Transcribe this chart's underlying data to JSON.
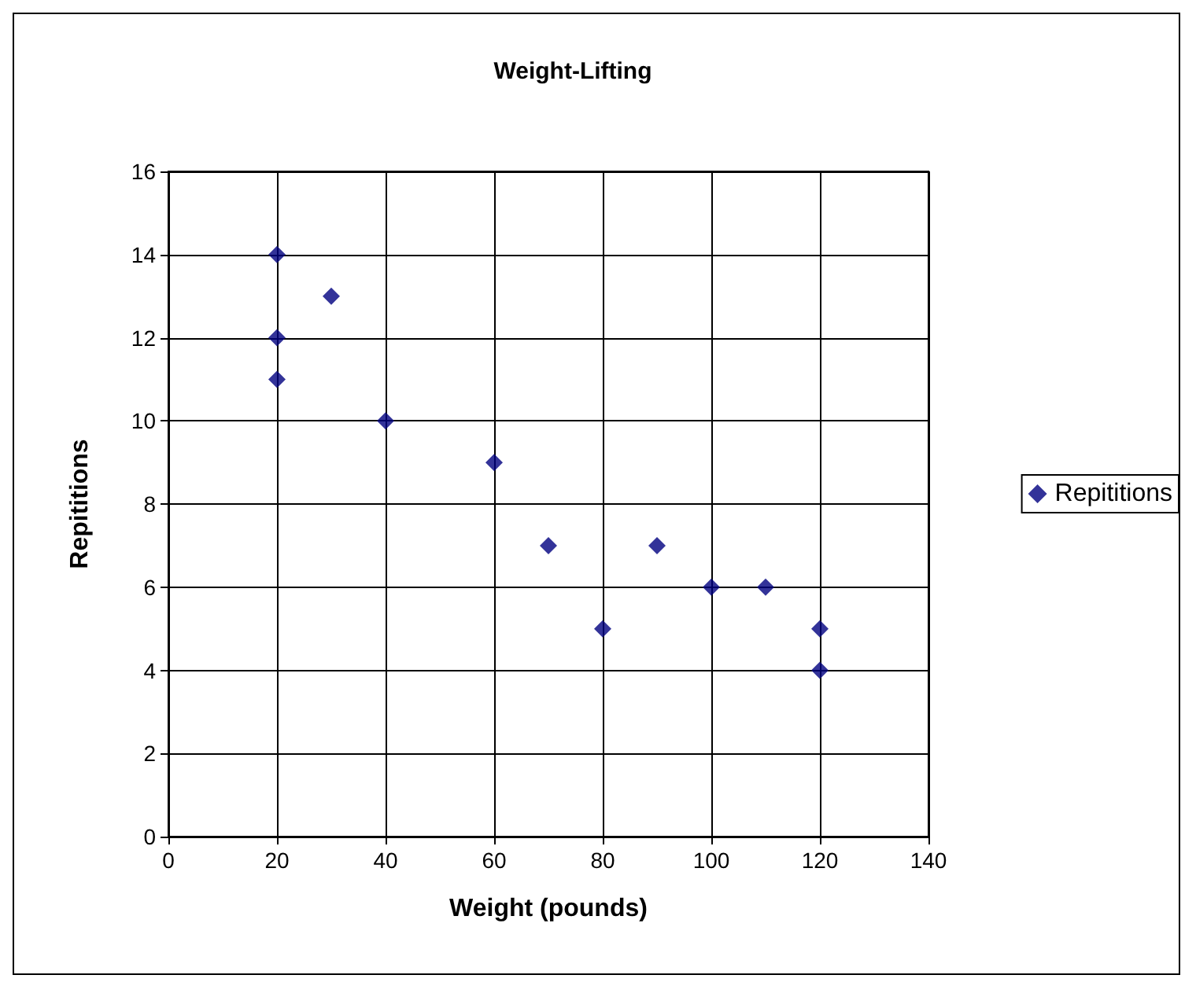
{
  "chart_data": {
    "type": "scatter",
    "title": "Weight-Lifting",
    "xlabel": "Weight (pounds)",
    "ylabel": "Repititions",
    "series": [
      {
        "name": "Repititions",
        "color": "#000080",
        "x": [
          20,
          20,
          20,
          30,
          40,
          60,
          70,
          80,
          90,
          100,
          110,
          120,
          120
        ],
        "values": [
          14,
          12,
          11,
          13,
          10,
          9,
          7,
          5,
          7,
          6,
          6,
          5,
          4
        ]
      }
    ],
    "xlim": [
      0,
      140
    ],
    "xticks": [
      0,
      20,
      40,
      60,
      80,
      100,
      120,
      140
    ],
    "ylim": [
      0,
      16
    ],
    "yticks": [
      0,
      2,
      4,
      6,
      8,
      10,
      12,
      14,
      16
    ],
    "grid": true,
    "legend": "right",
    "marker": "diamond"
  }
}
